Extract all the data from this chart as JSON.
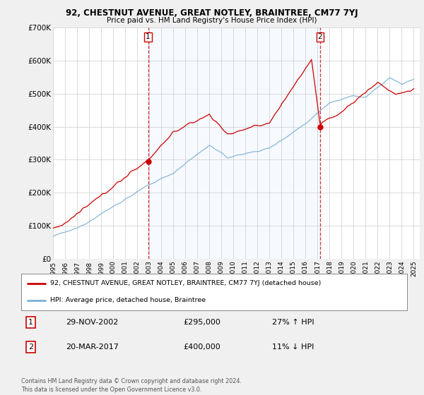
{
  "title": "92, CHESTNUT AVENUE, GREAT NOTLEY, BRAINTREE, CM77 7YJ",
  "subtitle": "Price paid vs. HM Land Registry's House Price Index (HPI)",
  "ylim": [
    0,
    700000
  ],
  "yticks": [
    0,
    100000,
    200000,
    300000,
    400000,
    500000,
    600000,
    700000
  ],
  "ytick_labels": [
    "£0",
    "£100K",
    "£200K",
    "£300K",
    "£400K",
    "£500K",
    "£600K",
    "£700K"
  ],
  "xlim_start": 1995.0,
  "xlim_end": 2025.5,
  "legend_line1": "92, CHESTNUT AVENUE, GREAT NOTLEY, BRAINTREE, CM77 7YJ (detached house)",
  "legend_line2": "HPI: Average price, detached house, Braintree",
  "transaction1_date": "29-NOV-2002",
  "transaction1_price": "£295,000",
  "transaction1_hpi": "27% ↑ HPI",
  "transaction1_year": 2002.91,
  "transaction2_date": "20-MAR-2017",
  "transaction2_price": "£400,000",
  "transaction2_hpi": "11% ↓ HPI",
  "transaction2_year": 2017.21,
  "footer": "Contains HM Land Registry data © Crown copyright and database right 2024.\nThis data is licensed under the Open Government Licence v3.0.",
  "red_color": "#cc0000",
  "blue_color": "#7bafd4",
  "shade_color": "#ddeeff",
  "bg_color": "#f0f0f0",
  "plot_bg": "#ffffff"
}
